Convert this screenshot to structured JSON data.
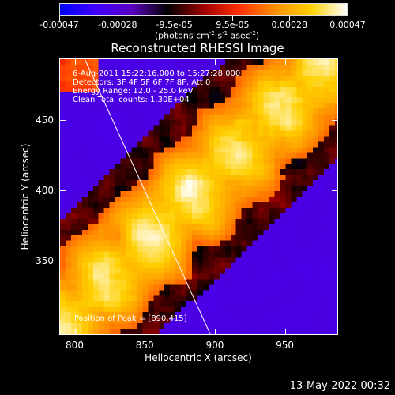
{
  "colorbar": {
    "ticks": [
      "-0.00047",
      "-0.00028",
      "-9.5e-05",
      "9.5e-05",
      "0.00028",
      "0.00047"
    ],
    "tick_values": [
      -0.00047,
      -0.00028,
      -9.5e-05,
      9.5e-05,
      0.00028,
      0.00047
    ],
    "units_prefix": "(photons cm",
    "units_exp1": "-2",
    "units_s": " s",
    "units_exp2": "-1",
    "units_asec": " asec",
    "units_exp3": "-2",
    "units_suffix": ")",
    "colors": [
      "#0000ff",
      "#3f00ff",
      "#5a00c0",
      "#000000",
      "#a00000",
      "#ff3000",
      "#ff9000",
      "#ffd000",
      "#ffffff"
    ]
  },
  "annotations": {
    "time_range": "6-Aug-2011 15:22:16.000 to 15:27:28.000",
    "detectors": "Detectors: 3F 4F 5F 6F 7F 8F, Att 0",
    "energy": "Energy Range: 12.0 - 25.0 keV",
    "clean": "Clean   Total counts: 1.30E+04",
    "peak": "Position of Peak = [890,415]"
  },
  "footer": {
    "date": "13-May-2022 00:32"
  },
  "chart_data": {
    "type": "heatmap",
    "title": "Reconstructed RHESSI Image",
    "xlabel": "Heliocentric X (arcsec)",
    "ylabel": "Heliocentric Y (arcsec)",
    "xlim": [
      789,
      988
    ],
    "ylim": [
      297,
      494
    ],
    "xticks": [
      800,
      850,
      900,
      950
    ],
    "yticks": [
      350,
      400,
      450
    ],
    "xtick_labels": [
      "800",
      "850",
      "900",
      "950"
    ],
    "ytick_labels": [
      "350",
      "400",
      "450"
    ],
    "colormap": "blue-purple-black-red-orange-yellow-white",
    "value_range": [
      -0.00047,
      0.00047
    ],
    "limb_line": {
      "x": [
        807,
        897
      ],
      "y": [
        494,
        297
      ]
    },
    "peak": {
      "x": 890,
      "y": 415
    },
    "grid": false
  }
}
